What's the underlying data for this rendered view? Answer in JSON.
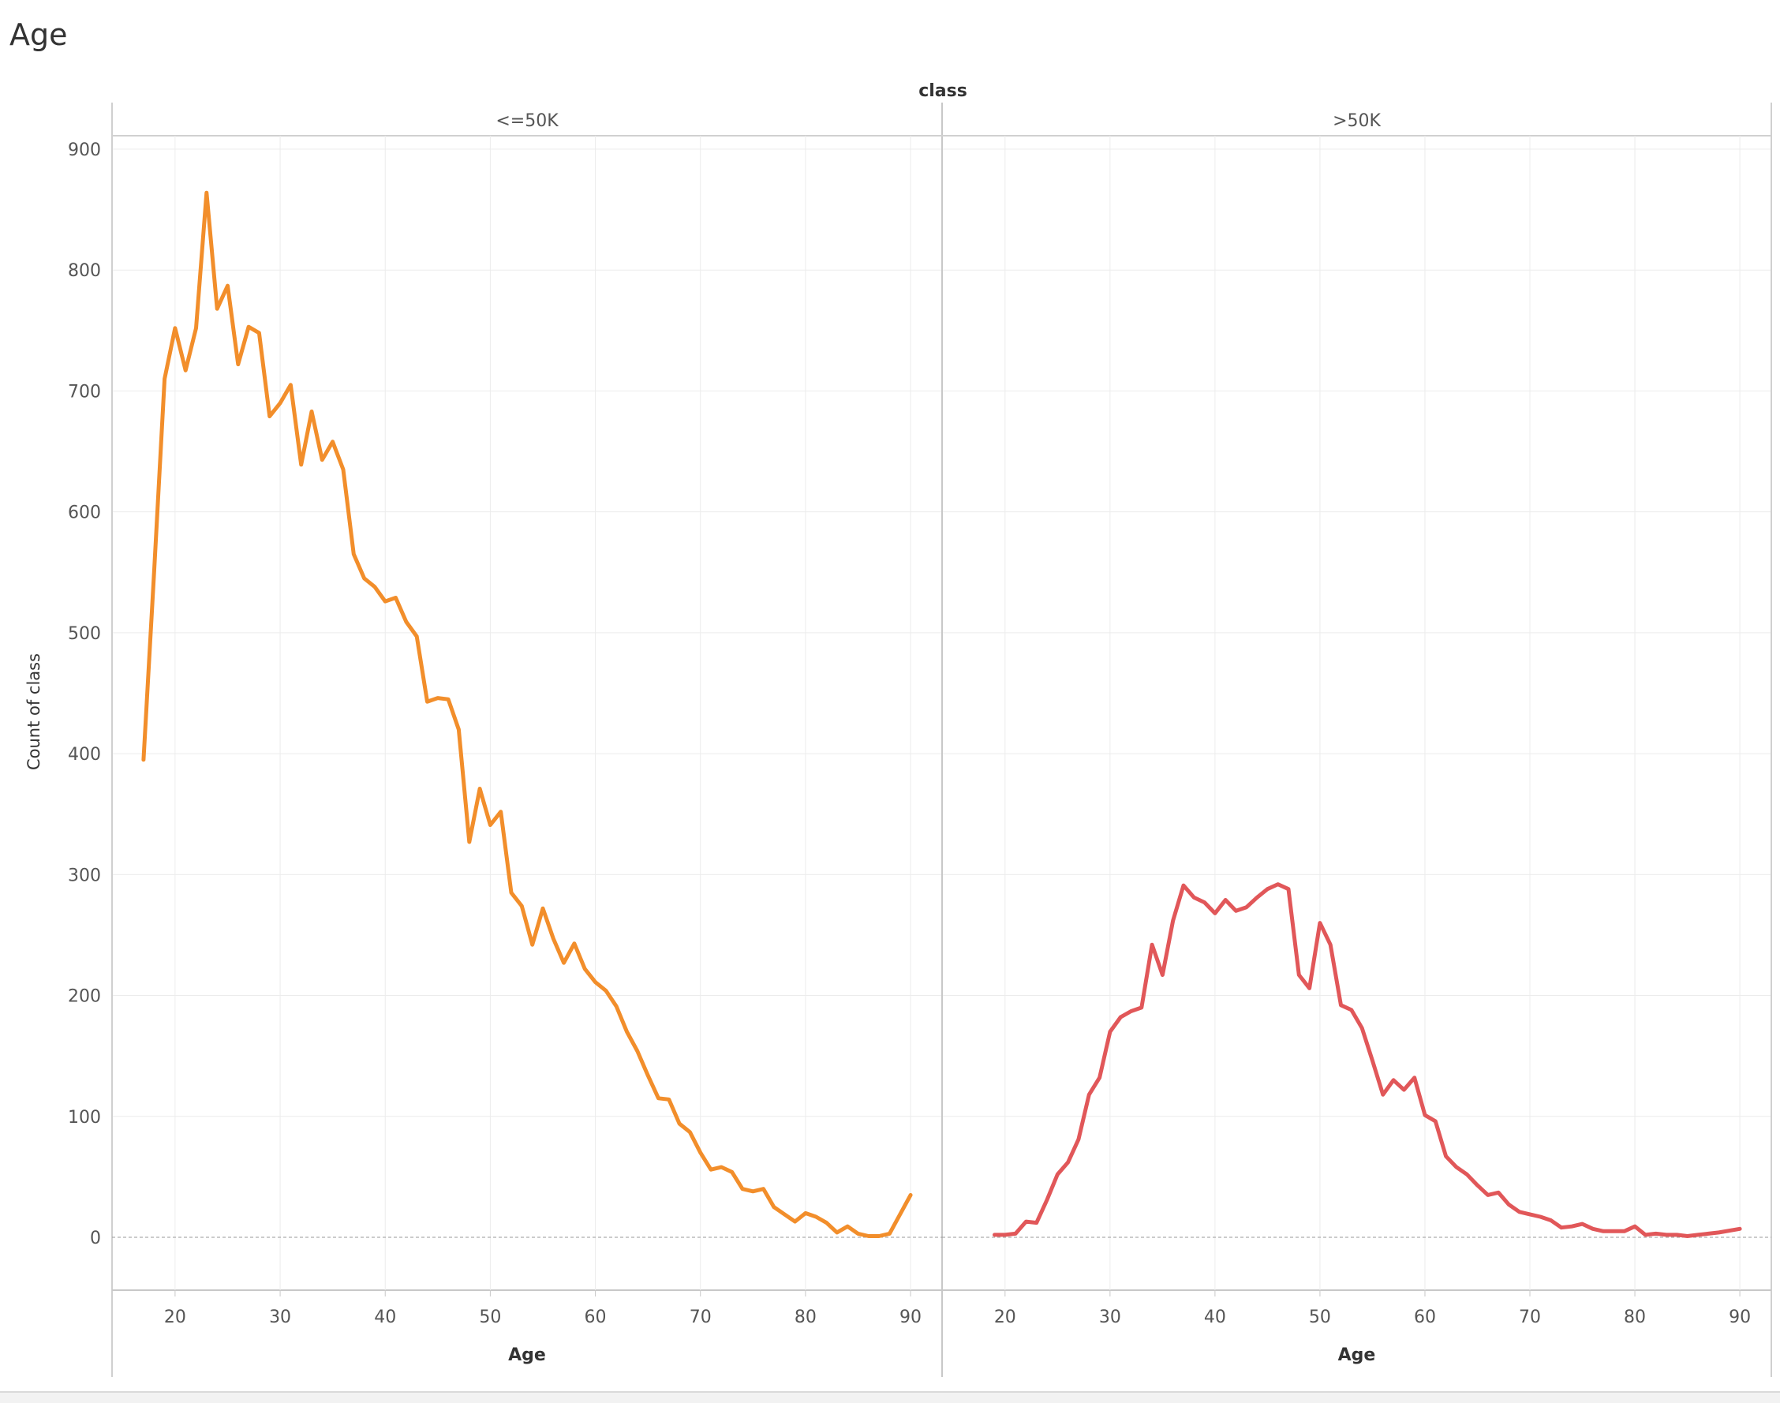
{
  "title": "Age",
  "colors": {
    "low": "#f28e2b",
    "high": "#e15759"
  },
  "chart_data": {
    "type": "line",
    "column_header": "class",
    "xlabel": "Age",
    "ylabel": "Count of class",
    "xticks": [
      20,
      30,
      40,
      50,
      60,
      70,
      80,
      90
    ],
    "yticks": [
      0,
      100,
      200,
      300,
      400,
      500,
      600,
      700,
      800,
      900
    ],
    "xlim": [
      14,
      93
    ],
    "ylim": [
      -45,
      910
    ],
    "grid": true,
    "panels": [
      {
        "name": "<=50K",
        "color": "#f28e2b",
        "x": [
          17,
          18,
          19,
          20,
          21,
          22,
          23,
          24,
          25,
          26,
          27,
          28,
          29,
          30,
          31,
          32,
          33,
          34,
          35,
          36,
          37,
          38,
          39,
          40,
          41,
          42,
          43,
          44,
          45,
          46,
          47,
          48,
          49,
          50,
          51,
          52,
          53,
          54,
          55,
          56,
          57,
          58,
          59,
          60,
          61,
          62,
          63,
          64,
          65,
          66,
          67,
          68,
          69,
          70,
          71,
          72,
          73,
          74,
          75,
          76,
          77,
          78,
          79,
          80,
          81,
          82,
          83,
          84,
          85,
          86,
          87,
          88,
          90
        ],
        "values": [
          395,
          550,
          710,
          752,
          717,
          752,
          864,
          768,
          787,
          722,
          753,
          748,
          679,
          690,
          705,
          639,
          683,
          643,
          658,
          635,
          565,
          545,
          538,
          526,
          529,
          509,
          497,
          443,
          446,
          445,
          420,
          327,
          371,
          341,
          352,
          285,
          274,
          242,
          272,
          247,
          227,
          243,
          222,
          211,
          204,
          191,
          170,
          154,
          134,
          115,
          114,
          94,
          87,
          70,
          56,
          58,
          54,
          40,
          38,
          40,
          25,
          19,
          13,
          20,
          17,
          12,
          4,
          9,
          3,
          1,
          1,
          3,
          35
        ]
      },
      {
        "name": ">50K",
        "color": "#e15759",
        "x": [
          19,
          20,
          21,
          22,
          23,
          24,
          25,
          26,
          27,
          28,
          29,
          30,
          31,
          32,
          33,
          34,
          35,
          36,
          37,
          38,
          39,
          40,
          41,
          42,
          43,
          44,
          45,
          46,
          47,
          48,
          49,
          50,
          51,
          52,
          53,
          54,
          55,
          56,
          57,
          58,
          59,
          60,
          61,
          62,
          63,
          64,
          65,
          66,
          67,
          68,
          69,
          70,
          71,
          72,
          73,
          74,
          75,
          76,
          77,
          78,
          79,
          80,
          81,
          82,
          83,
          84,
          85,
          86,
          87,
          88,
          90
        ],
        "values": [
          2,
          2,
          3,
          13,
          12,
          31,
          52,
          62,
          81,
          118,
          132,
          170,
          182,
          187,
          190,
          242,
          217,
          262,
          291,
          281,
          277,
          268,
          279,
          270,
          273,
          281,
          288,
          292,
          288,
          217,
          206,
          260,
          242,
          192,
          188,
          173,
          146,
          118,
          130,
          122,
          132,
          101,
          96,
          67,
          58,
          52,
          43,
          35,
          37,
          27,
          21,
          19,
          17,
          14,
          8,
          9,
          11,
          7,
          5,
          5,
          5,
          9,
          2,
          3,
          2,
          2,
          1,
          2,
          3,
          4,
          7
        ]
      }
    ]
  }
}
